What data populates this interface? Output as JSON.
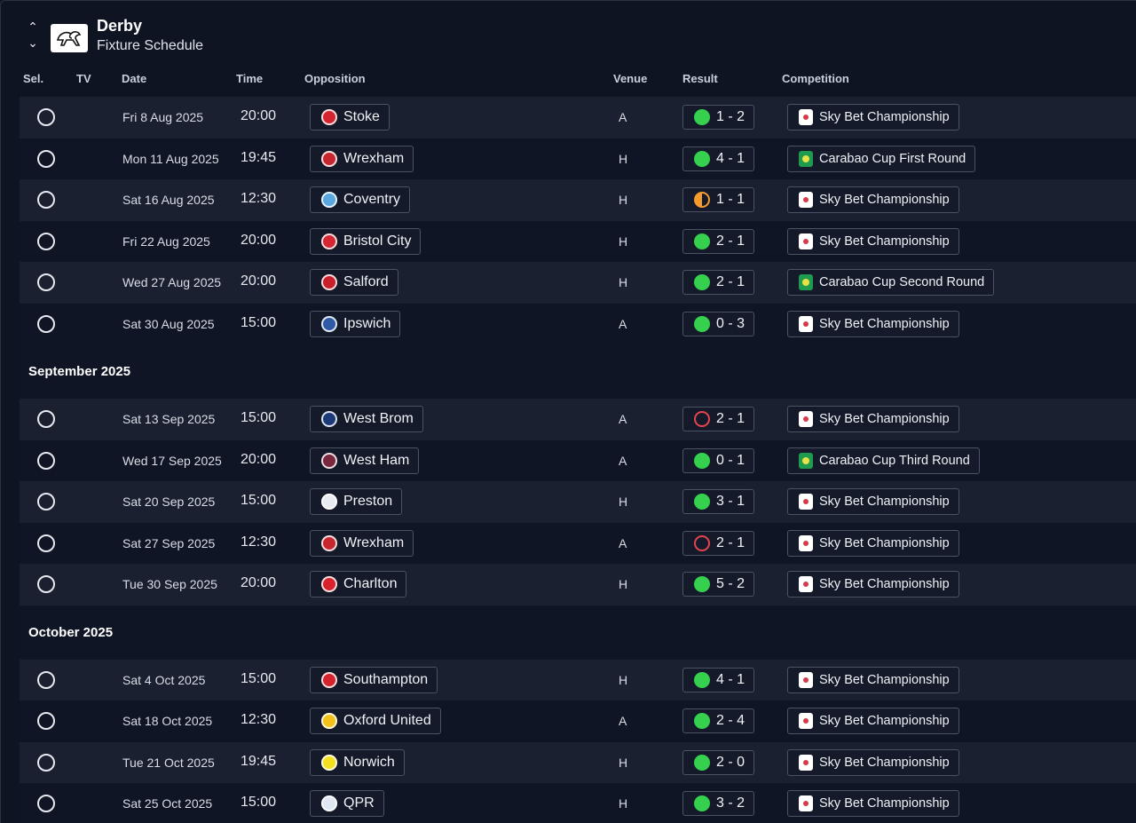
{
  "header": {
    "club_name": "Derby",
    "page_title": "Fixture Schedule",
    "sort_up_icon": "chevron-up-icon",
    "sort_down_icon": "chevron-down-icon"
  },
  "columns": {
    "sel": "Sel.",
    "tv": "TV",
    "date": "Date",
    "time": "Time",
    "opposition": "Opposition",
    "venue": "Venue",
    "result": "Result",
    "competition": "Competition"
  },
  "groups": [
    {
      "month": "",
      "fixtures": [
        {
          "date": "Fri 8 Aug 2025",
          "time": "20:00",
          "opp": "Stoke",
          "badge": "#d3242f",
          "venue": "A",
          "outcome": "win",
          "score": "1 - 2",
          "comp": "Sky Bet Championship",
          "comp_type": "sky"
        },
        {
          "date": "Mon 11 Aug 2025",
          "time": "19:45",
          "opp": "Wrexham",
          "badge": "#c8262f",
          "venue": "H",
          "outcome": "win",
          "score": "4 - 1",
          "comp": "Carabao Cup First Round",
          "comp_type": "carabao"
        },
        {
          "date": "Sat 16 Aug 2025",
          "time": "12:30",
          "opp": "Coventry",
          "badge": "#5aa7de",
          "venue": "H",
          "outcome": "draw",
          "score": "1 - 1",
          "comp": "Sky Bet Championship",
          "comp_type": "sky"
        },
        {
          "date": "Fri 22 Aug 2025",
          "time": "20:00",
          "opp": "Bristol City",
          "badge": "#d42733",
          "venue": "H",
          "outcome": "win",
          "score": "2 - 1",
          "comp": "Sky Bet Championship",
          "comp_type": "sky"
        },
        {
          "date": "Wed 27 Aug 2025",
          "time": "20:00",
          "opp": "Salford",
          "badge": "#c8202b",
          "venue": "H",
          "outcome": "win",
          "score": "2 - 1",
          "comp": "Carabao Cup Second Round",
          "comp_type": "carabao"
        },
        {
          "date": "Sat 30 Aug 2025",
          "time": "15:00",
          "opp": "Ipswich",
          "badge": "#2f5aa8",
          "venue": "A",
          "outcome": "win",
          "score": "0 - 3",
          "comp": "Sky Bet Championship",
          "comp_type": "sky"
        }
      ]
    },
    {
      "month": "September 2025",
      "fixtures": [
        {
          "date": "Sat 13 Sep 2025",
          "time": "15:00",
          "opp": "West Brom",
          "badge": "#1d3a78",
          "venue": "A",
          "outcome": "loss",
          "score": "2 - 1",
          "comp": "Sky Bet Championship",
          "comp_type": "sky"
        },
        {
          "date": "Wed 17 Sep 2025",
          "time": "20:00",
          "opp": "West Ham",
          "badge": "#7a2740",
          "venue": "A",
          "outcome": "win",
          "score": "0 - 1",
          "comp": "Carabao Cup Third Round",
          "comp_type": "carabao"
        },
        {
          "date": "Sat 20 Sep 2025",
          "time": "15:00",
          "opp": "Preston",
          "badge": "#e8ecf2",
          "venue": "H",
          "outcome": "win",
          "score": "3 - 1",
          "comp": "Sky Bet Championship",
          "comp_type": "sky"
        },
        {
          "date": "Sat 27 Sep 2025",
          "time": "12:30",
          "opp": "Wrexham",
          "badge": "#c8262f",
          "venue": "A",
          "outcome": "loss",
          "score": "2 - 1",
          "comp": "Sky Bet Championship",
          "comp_type": "sky"
        },
        {
          "date": "Tue 30 Sep 2025",
          "time": "20:00",
          "opp": "Charlton",
          "badge": "#d6232e",
          "venue": "H",
          "outcome": "win",
          "score": "5 - 2",
          "comp": "Sky Bet Championship",
          "comp_type": "sky"
        }
      ]
    },
    {
      "month": "October 2025",
      "fixtures": [
        {
          "date": "Sat 4 Oct 2025",
          "time": "15:00",
          "opp": "Southampton",
          "badge": "#d3242f",
          "venue": "H",
          "outcome": "win",
          "score": "4 - 1",
          "comp": "Sky Bet Championship",
          "comp_type": "sky"
        },
        {
          "date": "Sat 18 Oct 2025",
          "time": "12:30",
          "opp": "Oxford United",
          "badge": "#f2c21b",
          "venue": "A",
          "outcome": "win",
          "score": "2 - 4",
          "comp": "Sky Bet Championship",
          "comp_type": "sky"
        },
        {
          "date": "Tue 21 Oct 2025",
          "time": "19:45",
          "opp": "Norwich",
          "badge": "#f4e021",
          "venue": "H",
          "outcome": "win",
          "score": "2 - 0",
          "comp": "Sky Bet Championship",
          "comp_type": "sky"
        },
        {
          "date": "Sat 25 Oct 2025",
          "time": "15:00",
          "opp": "QPR",
          "badge": "#dfe7f2",
          "venue": "H",
          "outcome": "win",
          "score": "3 - 2",
          "comp": "Sky Bet Championship",
          "comp_type": "sky"
        }
      ]
    }
  ]
}
